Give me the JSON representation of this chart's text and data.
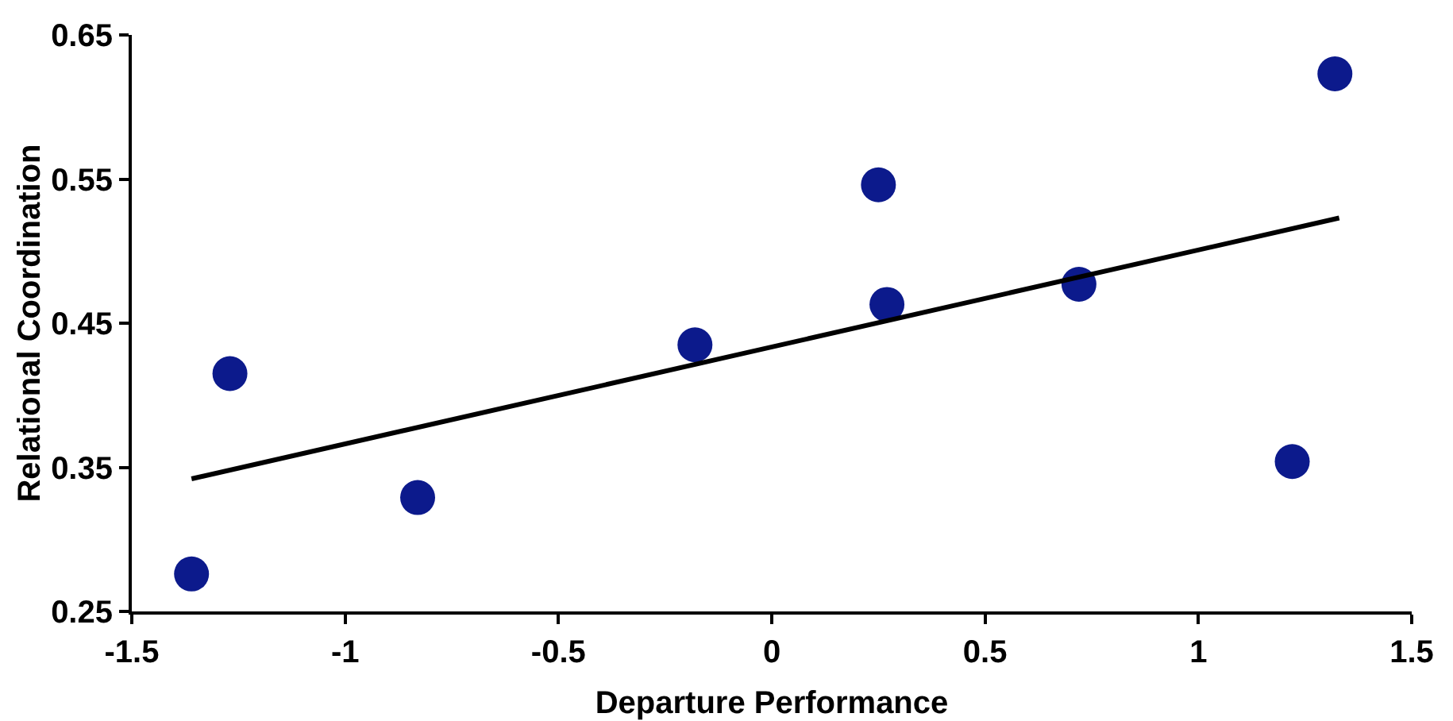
{
  "chart_data": {
    "type": "scatter",
    "xlabel": "Departure Performance",
    "ylabel": "Relational Coordination",
    "xlim": [
      -1.5,
      1.5
    ],
    "ylim": [
      0.25,
      0.65
    ],
    "xticks": [
      -1.5,
      -1,
      -0.5,
      0,
      0.5,
      1,
      1.5
    ],
    "yticks": [
      0.25,
      0.35,
      0.45,
      0.55,
      0.65
    ],
    "grid": false,
    "series": [
      {
        "marker": "circle",
        "color": "#0c1a8c",
        "x": [
          -1.36,
          -1.27,
          -0.83,
          -0.18,
          0.25,
          0.27,
          0.72,
          1.22,
          1.32
        ],
        "values": [
          0.276,
          0.415,
          0.329,
          0.435,
          0.546,
          0.463,
          0.477,
          0.354,
          0.623
        ]
      },
      {
        "type": "line",
        "color": "#000000",
        "x": [
          -1.36,
          1.33
        ],
        "values": [
          0.342,
          0.523
        ]
      }
    ]
  }
}
